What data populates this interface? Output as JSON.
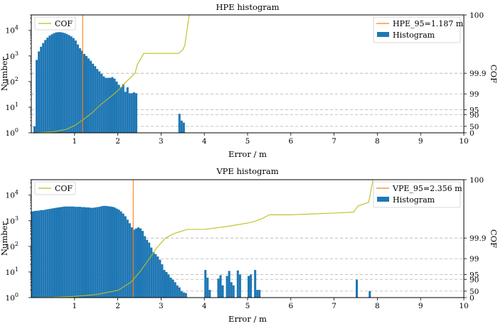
{
  "chart_data": [
    {
      "type": "bar",
      "title": "HPE histogram",
      "xlabel": "Error / m",
      "ylabel": "Number",
      "y2label": "COF",
      "xlim": [
        0,
        10
      ],
      "ylim": [
        1,
        40000
      ],
      "yscale": "log",
      "x_ticks": [
        "1",
        "2",
        "3",
        "4",
        "5",
        "6",
        "7",
        "8",
        "9",
        "10"
      ],
      "y_ticks": [
        "10^0",
        "10^1",
        "10^2",
        "10^3",
        "10^4"
      ],
      "cof_ticks": [
        "0",
        "50",
        "90",
        "95",
        "99",
        "99.9",
        "100"
      ],
      "grid": "dashed horizontal at COF ticks",
      "legend_left": [
        "COF"
      ],
      "legend_right": [
        "HPE_95=1.187 m",
        "Histogram"
      ],
      "colors": {
        "histogram": "#1f77b4",
        "cof": "#bcbd22",
        "percentile": "#ff7f0e"
      },
      "percentile_95": 1.187,
      "bin_width": 0.05,
      "bins": [
        [
          0.05,
          1.8
        ],
        [
          0.1,
          700
        ],
        [
          0.15,
          1500
        ],
        [
          0.2,
          2300
        ],
        [
          0.25,
          3200
        ],
        [
          0.3,
          4200
        ],
        [
          0.35,
          5200
        ],
        [
          0.4,
          6200
        ],
        [
          0.45,
          7000
        ],
        [
          0.5,
          7800
        ],
        [
          0.55,
          8300
        ],
        [
          0.6,
          8500
        ],
        [
          0.65,
          8500
        ],
        [
          0.7,
          8200
        ],
        [
          0.75,
          7800
        ],
        [
          0.8,
          7200
        ],
        [
          0.85,
          6500
        ],
        [
          0.9,
          5800
        ],
        [
          0.95,
          5000
        ],
        [
          1.0,
          4000
        ],
        [
          1.05,
          2800
        ],
        [
          1.1,
          2000
        ],
        [
          1.15,
          1600
        ],
        [
          1.2,
          1200
        ],
        [
          1.25,
          1000
        ],
        [
          1.3,
          800
        ],
        [
          1.35,
          650
        ],
        [
          1.4,
          500
        ],
        [
          1.45,
          400
        ],
        [
          1.5,
          310
        ],
        [
          1.55,
          250
        ],
        [
          1.6,
          200
        ],
        [
          1.65,
          160
        ],
        [
          1.7,
          140
        ],
        [
          1.75,
          140
        ],
        [
          1.8,
          140
        ],
        [
          1.85,
          150
        ],
        [
          1.9,
          130
        ],
        [
          1.95,
          100
        ],
        [
          2.0,
          75
        ],
        [
          2.05,
          60
        ],
        [
          2.1,
          80
        ],
        [
          2.15,
          40
        ],
        [
          2.2,
          60
        ],
        [
          2.25,
          35
        ],
        [
          2.3,
          35
        ],
        [
          2.35,
          38
        ],
        [
          2.4,
          35
        ],
        [
          3.4,
          5.5
        ],
        [
          3.45,
          3.0
        ],
        [
          3.5,
          2.5
        ]
      ],
      "cof_curve": [
        [
          0.1,
          0
        ],
        [
          0.5,
          10
        ],
        [
          0.8,
          30
        ],
        [
          1.0,
          55
        ],
        [
          1.2,
          80
        ],
        [
          1.4,
          92
        ],
        [
          1.6,
          97
        ],
        [
          1.8,
          98.5
        ],
        [
          2.0,
          99.3
        ],
        [
          2.2,
          99.75
        ],
        [
          2.4,
          99.9
        ],
        [
          2.45,
          99.95
        ],
        [
          2.6,
          99.98
        ],
        [
          3.4,
          99.98
        ],
        [
          3.5,
          99.985
        ],
        [
          3.55,
          99.99
        ],
        [
          3.65,
          100
        ]
      ]
    },
    {
      "type": "bar",
      "title": "VPE histogram",
      "xlabel": "Error / m",
      "ylabel": "Number",
      "y2label": "COF",
      "xlim": [
        0,
        10
      ],
      "ylim": [
        1,
        40000
      ],
      "yscale": "log",
      "x_ticks": [
        "1",
        "2",
        "3",
        "4",
        "5",
        "6",
        "7",
        "8",
        "9",
        "10"
      ],
      "y_ticks": [
        "10^0",
        "10^1",
        "10^2",
        "10^3",
        "10^4"
      ],
      "cof_ticks": [
        "0",
        "50",
        "90",
        "95",
        "99",
        "99.9",
        "100"
      ],
      "grid": "dashed horizontal at COF ticks",
      "legend_left": [
        "COF"
      ],
      "legend_right": [
        "VPE_95=2.356 m",
        "Histogram"
      ],
      "colors": {
        "histogram": "#1f77b4",
        "cof": "#bcbd22",
        "percentile": "#ff7f0e"
      },
      "percentile_95": 2.356,
      "bin_width": 0.05,
      "bins": [
        [
          0.0,
          2300
        ],
        [
          0.05,
          2400
        ],
        [
          0.1,
          2450
        ],
        [
          0.15,
          2500
        ],
        [
          0.2,
          2600
        ],
        [
          0.25,
          2600
        ],
        [
          0.3,
          2700
        ],
        [
          0.35,
          2800
        ],
        [
          0.4,
          2900
        ],
        [
          0.45,
          3000
        ],
        [
          0.5,
          3100
        ],
        [
          0.55,
          3200
        ],
        [
          0.6,
          3300
        ],
        [
          0.65,
          3400
        ],
        [
          0.7,
          3500
        ],
        [
          0.75,
          3600
        ],
        [
          0.8,
          3600
        ],
        [
          0.85,
          3600
        ],
        [
          0.9,
          3600
        ],
        [
          0.95,
          3600
        ],
        [
          1.0,
          3500
        ],
        [
          1.05,
          3500
        ],
        [
          1.1,
          3500
        ],
        [
          1.15,
          3400
        ],
        [
          1.2,
          3400
        ],
        [
          1.25,
          3300
        ],
        [
          1.3,
          3300
        ],
        [
          1.35,
          3200
        ],
        [
          1.4,
          3200
        ],
        [
          1.45,
          3300
        ],
        [
          1.5,
          3400
        ],
        [
          1.55,
          3500
        ],
        [
          1.6,
          3700
        ],
        [
          1.65,
          3800
        ],
        [
          1.7,
          3800
        ],
        [
          1.75,
          3700
        ],
        [
          1.8,
          3600
        ],
        [
          1.85,
          3500
        ],
        [
          1.9,
          3300
        ],
        [
          1.95,
          3000
        ],
        [
          2.0,
          2700
        ],
        [
          2.05,
          2300
        ],
        [
          2.1,
          1900
        ],
        [
          2.15,
          1500
        ],
        [
          2.2,
          1100
        ],
        [
          2.25,
          800
        ],
        [
          2.3,
          550
        ],
        [
          2.35,
          450
        ],
        [
          2.4,
          500
        ],
        [
          2.45,
          550
        ],
        [
          2.5,
          500
        ],
        [
          2.55,
          400
        ],
        [
          2.6,
          250
        ],
        [
          2.65,
          180
        ],
        [
          2.7,
          140
        ],
        [
          2.75,
          90
        ],
        [
          2.8,
          60
        ],
        [
          2.85,
          50
        ],
        [
          2.9,
          40
        ],
        [
          2.95,
          30
        ],
        [
          3.0,
          20
        ],
        [
          3.05,
          12
        ],
        [
          3.1,
          10
        ],
        [
          3.15,
          8
        ],
        [
          3.2,
          6
        ],
        [
          3.25,
          5
        ],
        [
          3.3,
          4
        ],
        [
          3.35,
          3
        ],
        [
          3.4,
          2.5
        ],
        [
          3.45,
          1.8
        ],
        [
          3.5,
          1.6
        ],
        [
          3.55,
          1.5
        ],
        [
          4.0,
          12
        ],
        [
          4.05,
          6
        ],
        [
          4.1,
          2.0
        ],
        [
          4.3,
          5.5
        ],
        [
          4.35,
          7.5
        ],
        [
          4.4,
          3.0
        ],
        [
          4.5,
          7.0
        ],
        [
          4.55,
          11.0
        ],
        [
          4.6,
          4.0
        ],
        [
          4.65,
          3.0
        ],
        [
          4.75,
          11.5
        ],
        [
          4.8,
          8.0
        ],
        [
          5.0,
          7.0
        ],
        [
          5.05,
          8.0
        ],
        [
          5.15,
          12.0
        ],
        [
          5.2,
          2.0
        ],
        [
          5.25,
          2.0
        ],
        [
          7.5,
          5.0
        ],
        [
          7.8,
          1.8
        ]
      ],
      "cof_curve": [
        [
          0.0,
          0
        ],
        [
          0.5,
          3
        ],
        [
          1.0,
          12
        ],
        [
          1.5,
          28
        ],
        [
          2.0,
          55
        ],
        [
          2.3,
          85
        ],
        [
          2.5,
          96
        ],
        [
          2.7,
          98.8
        ],
        [
          2.9,
          99.7
        ],
        [
          3.1,
          99.9
        ],
        [
          3.3,
          99.93
        ],
        [
          3.6,
          99.95
        ],
        [
          4.0,
          99.95
        ],
        [
          4.5,
          99.96
        ],
        [
          5.0,
          99.97
        ],
        [
          5.2,
          99.975
        ],
        [
          5.35,
          99.98
        ],
        [
          5.5,
          99.985
        ],
        [
          6.0,
          99.985
        ],
        [
          6.5,
          99.986
        ],
        [
          7.0,
          99.987
        ],
        [
          7.45,
          99.988
        ],
        [
          7.55,
          99.993
        ],
        [
          7.8,
          99.995
        ],
        [
          7.9,
          100
        ]
      ]
    }
  ]
}
